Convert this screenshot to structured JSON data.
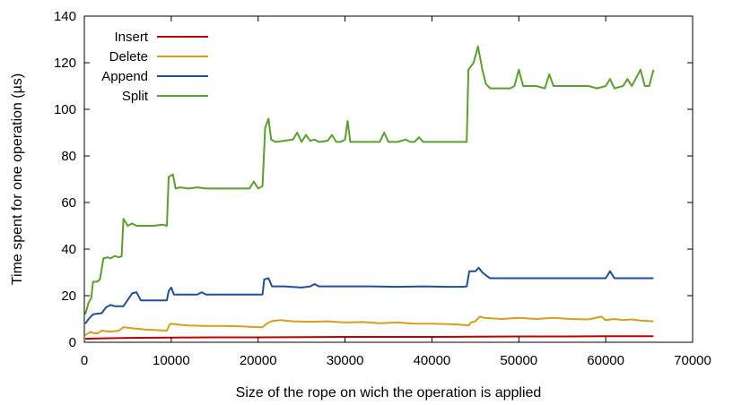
{
  "chart_data": {
    "type": "line",
    "title": "",
    "xlabel": "Size of the rope on wich the operation is applied",
    "ylabel": "Time spent for one operation (µs)",
    "xlim": [
      0,
      70000
    ],
    "ylim": [
      0,
      140
    ],
    "xticks": [
      0,
      10000,
      20000,
      30000,
      40000,
      50000,
      60000,
      70000
    ],
    "yticks": [
      0,
      20,
      40,
      60,
      80,
      100,
      120,
      140
    ],
    "xtick_labels": [
      "0",
      "10000",
      "20000",
      "30000",
      "40000",
      "50000",
      "60000",
      "70000"
    ],
    "ytick_labels": [
      "0",
      "20",
      "40",
      "60",
      "80",
      "100",
      "120",
      "140"
    ],
    "grid": false,
    "legend_position": "top-left",
    "series": [
      {
        "name": "Insert",
        "color": "#c00000",
        "points": [
          [
            100,
            1.5
          ],
          [
            2000,
            1.7
          ],
          [
            5000,
            1.9
          ],
          [
            10000,
            2.0
          ],
          [
            15000,
            2.1
          ],
          [
            20000,
            2.1
          ],
          [
            25000,
            2.2
          ],
          [
            30000,
            2.3
          ],
          [
            35000,
            2.3
          ],
          [
            40000,
            2.3
          ],
          [
            45000,
            2.4
          ],
          [
            50000,
            2.5
          ],
          [
            55000,
            2.5
          ],
          [
            60000,
            2.6
          ],
          [
            65500,
            2.6
          ]
        ]
      },
      {
        "name": "Delete",
        "color": "#d4a017",
        "points": [
          [
            100,
            3
          ],
          [
            700,
            4.5
          ],
          [
            1000,
            4
          ],
          [
            1500,
            3.8
          ],
          [
            2000,
            5
          ],
          [
            3000,
            4.5
          ],
          [
            4000,
            5
          ],
          [
            4500,
            6.5
          ],
          [
            5500,
            6
          ],
          [
            7000,
            5.5
          ],
          [
            8500,
            5.2
          ],
          [
            9500,
            5
          ],
          [
            9800,
            7.5
          ],
          [
            10000,
            8
          ],
          [
            11000,
            7.5
          ],
          [
            12000,
            7.2
          ],
          [
            14000,
            7
          ],
          [
            16000,
            7
          ],
          [
            18000,
            6.8
          ],
          [
            20000,
            6.5
          ],
          [
            20500,
            6.5
          ],
          [
            21000,
            8
          ],
          [
            21500,
            9
          ],
          [
            22500,
            9.5
          ],
          [
            24000,
            9
          ],
          [
            26000,
            8.8
          ],
          [
            28000,
            9
          ],
          [
            30000,
            8.5
          ],
          [
            32000,
            8.7
          ],
          [
            34000,
            8.2
          ],
          [
            36000,
            8.5
          ],
          [
            38000,
            8
          ],
          [
            40000,
            8
          ],
          [
            42000,
            7.8
          ],
          [
            43500,
            7.5
          ],
          [
            44200,
            7.2
          ],
          [
            44500,
            8.5
          ],
          [
            45000,
            9
          ],
          [
            45500,
            11
          ],
          [
            46000,
            10.5
          ],
          [
            48000,
            10
          ],
          [
            50000,
            10.5
          ],
          [
            52000,
            10
          ],
          [
            54000,
            10.5
          ],
          [
            56000,
            10
          ],
          [
            58000,
            9.8
          ],
          [
            59500,
            11
          ],
          [
            60000,
            9.5
          ],
          [
            61000,
            10
          ],
          [
            62000,
            9.5
          ],
          [
            63000,
            9.8
          ],
          [
            64000,
            9.3
          ],
          [
            65500,
            9
          ]
        ]
      },
      {
        "name": "Append",
        "color": "#1f4e9c",
        "points": [
          [
            100,
            8
          ],
          [
            500,
            10
          ],
          [
            1000,
            12
          ],
          [
            2000,
            12.5
          ],
          [
            2500,
            15
          ],
          [
            3000,
            16
          ],
          [
            3500,
            15.5
          ],
          [
            4500,
            15.5
          ],
          [
            5500,
            21
          ],
          [
            6000,
            21.5
          ],
          [
            6500,
            18
          ],
          [
            8000,
            18
          ],
          [
            9500,
            18
          ],
          [
            9700,
            22
          ],
          [
            10000,
            23.5
          ],
          [
            10300,
            20.5
          ],
          [
            12000,
            20.5
          ],
          [
            13000,
            20.5
          ],
          [
            13500,
            21.5
          ],
          [
            14000,
            20.5
          ],
          [
            16000,
            20.5
          ],
          [
            18000,
            20.5
          ],
          [
            20000,
            20.5
          ],
          [
            20500,
            20.5
          ],
          [
            20700,
            27
          ],
          [
            21200,
            27.5
          ],
          [
            21600,
            24
          ],
          [
            23000,
            24
          ],
          [
            25000,
            23.5
          ],
          [
            26000,
            24
          ],
          [
            26500,
            25
          ],
          [
            27000,
            24
          ],
          [
            30000,
            24
          ],
          [
            33000,
            24
          ],
          [
            36000,
            23.8
          ],
          [
            39000,
            24
          ],
          [
            42000,
            23.8
          ],
          [
            43500,
            23.8
          ],
          [
            44000,
            24
          ],
          [
            44300,
            30.5
          ],
          [
            45000,
            30.5
          ],
          [
            45400,
            32
          ],
          [
            45800,
            30
          ],
          [
            46300,
            28.5
          ],
          [
            46700,
            27.5
          ],
          [
            48000,
            27.5
          ],
          [
            50000,
            27.5
          ],
          [
            52000,
            27.5
          ],
          [
            54000,
            27.5
          ],
          [
            56000,
            27.5
          ],
          [
            58000,
            27.5
          ],
          [
            60000,
            27.5
          ],
          [
            60500,
            30.5
          ],
          [
            61000,
            27.5
          ],
          [
            63000,
            27.5
          ],
          [
            65500,
            27.5
          ]
        ]
      },
      {
        "name": "Split",
        "color": "#5aa02c",
        "points": [
          [
            100,
            12
          ],
          [
            500,
            17
          ],
          [
            800,
            19
          ],
          [
            1000,
            26
          ],
          [
            1500,
            26
          ],
          [
            1800,
            27
          ],
          [
            2200,
            36
          ],
          [
            2700,
            36.5
          ],
          [
            3000,
            36
          ],
          [
            3500,
            37
          ],
          [
            4000,
            36.5
          ],
          [
            4300,
            37
          ],
          [
            4500,
            53
          ],
          [
            5000,
            50
          ],
          [
            5500,
            51
          ],
          [
            6000,
            50
          ],
          [
            7000,
            50
          ],
          [
            8000,
            50
          ],
          [
            9000,
            50.5
          ],
          [
            9500,
            50
          ],
          [
            9700,
            71
          ],
          [
            10200,
            72
          ],
          [
            10500,
            66
          ],
          [
            11000,
            66.5
          ],
          [
            12000,
            66
          ],
          [
            13000,
            66.5
          ],
          [
            14000,
            66
          ],
          [
            16000,
            66
          ],
          [
            18000,
            66
          ],
          [
            19000,
            66
          ],
          [
            19500,
            69
          ],
          [
            20000,
            66
          ],
          [
            20500,
            67
          ],
          [
            20800,
            92
          ],
          [
            21200,
            96
          ],
          [
            21500,
            87
          ],
          [
            22000,
            86
          ],
          [
            23000,
            86.5
          ],
          [
            24000,
            87
          ],
          [
            24500,
            90
          ],
          [
            25000,
            86
          ],
          [
            25500,
            89
          ],
          [
            26000,
            86.5
          ],
          [
            26500,
            87
          ],
          [
            27000,
            86
          ],
          [
            28000,
            86.5
          ],
          [
            28500,
            89
          ],
          [
            29000,
            86
          ],
          [
            29500,
            86
          ],
          [
            30000,
            87
          ],
          [
            30300,
            95
          ],
          [
            30600,
            86
          ],
          [
            32000,
            86
          ],
          [
            34000,
            86
          ],
          [
            34500,
            90
          ],
          [
            35000,
            86
          ],
          [
            36000,
            86
          ],
          [
            37000,
            87
          ],
          [
            37500,
            86
          ],
          [
            38000,
            86
          ],
          [
            38500,
            88
          ],
          [
            39000,
            86
          ],
          [
            40000,
            86
          ],
          [
            41000,
            86
          ],
          [
            42000,
            86
          ],
          [
            43000,
            86
          ],
          [
            43500,
            86
          ],
          [
            44000,
            86
          ],
          [
            44200,
            117
          ],
          [
            44800,
            120
          ],
          [
            45300,
            127
          ],
          [
            45800,
            117
          ],
          [
            46200,
            111
          ],
          [
            46700,
            109
          ],
          [
            48000,
            109
          ],
          [
            49000,
            109
          ],
          [
            49500,
            110
          ],
          [
            50000,
            117
          ],
          [
            50500,
            110
          ],
          [
            52000,
            110
          ],
          [
            53000,
            109
          ],
          [
            53500,
            115
          ],
          [
            54000,
            110
          ],
          [
            56000,
            110
          ],
          [
            58000,
            110
          ],
          [
            59000,
            109
          ],
          [
            60000,
            110
          ],
          [
            60500,
            113
          ],
          [
            61000,
            109
          ],
          [
            62000,
            110
          ],
          [
            62500,
            113
          ],
          [
            63000,
            110
          ],
          [
            64000,
            117
          ],
          [
            64500,
            110
          ],
          [
            65000,
            110
          ],
          [
            65500,
            117
          ]
        ]
      }
    ]
  }
}
